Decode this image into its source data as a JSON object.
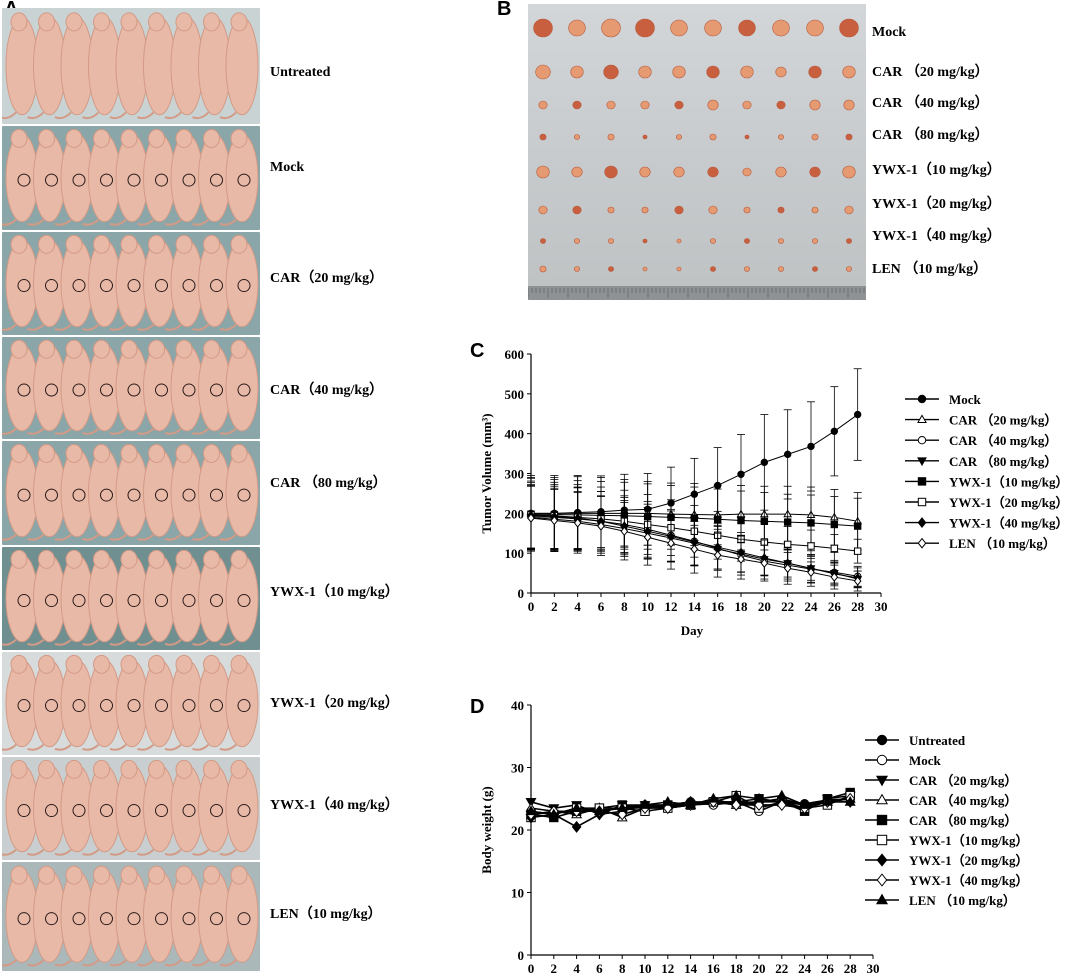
{
  "panels": {
    "a": "A",
    "b": "B",
    "c": "C",
    "d": "D"
  },
  "panel_a": {
    "groups": [
      "Untreated",
      "Mock",
      "CAR（20 mg/kg）",
      "CAR（40 mg/kg）",
      "CAR （80 mg/kg）",
      "YWX-1（10 mg/kg）",
      "YWX-1（20 mg/kg）",
      "YWX-1（40 mg/kg）",
      "LEN（10 mg/kg）"
    ],
    "mice_per_group": 9,
    "colors": {
      "skin": "#e8b9a6",
      "skin_shade": "#d39a86",
      "background": "#8aa6a8"
    }
  },
  "panel_b": {
    "rows": [
      "Mock",
      "CAR （20 mg/kg）",
      "CAR （40 mg/kg）",
      "CAR （80 mg/kg）",
      "YWX-1（10 mg/kg）",
      "YWX-1（20 mg/kg）",
      "YWX-1（40 mg/kg）",
      "LEN （10 mg/kg）"
    ],
    "tumors_per_row": 10,
    "colors": {
      "tumor": "#e59a72",
      "tumor_dark": "#c8603f",
      "tray": "#c9cccd"
    }
  },
  "chart_data": [
    {
      "type": "line",
      "panel": "C",
      "xlabel": "Day",
      "ylabel": "Tumor Volume (mm³)",
      "xlim": [
        0,
        30
      ],
      "ylim": [
        0,
        600
      ],
      "xticks": [
        0,
        2,
        4,
        6,
        8,
        10,
        12,
        14,
        16,
        18,
        20,
        22,
        24,
        26,
        28,
        30
      ],
      "yticks": [
        0,
        100,
        200,
        300,
        400,
        500,
        600
      ],
      "x": [
        0,
        2,
        4,
        6,
        8,
        10,
        12,
        14,
        16,
        18,
        20,
        22,
        24,
        26,
        28
      ],
      "legend_position": "right",
      "series": [
        {
          "name": "Mock",
          "marker": "circle-filled",
          "values": [
            200,
            200,
            202,
            204,
            208,
            210,
            226,
            248,
            270,
            298,
            328,
            348,
            368,
            406,
            448
          ],
          "errors": [
            90,
            90,
            90,
            90,
            90,
            90,
            90,
            90,
            95,
            100,
            120,
            112,
            112,
            112,
            115
          ]
        },
        {
          "name": "CAR （20 mg/kg）",
          "marker": "triangle-up-open",
          "values": [
            200,
            200,
            200,
            200,
            200,
            200,
            198,
            197,
            196,
            198,
            198,
            198,
            196,
            190,
            180
          ],
          "errors": [
            95,
            95,
            95,
            90,
            85,
            80,
            78,
            78,
            75,
            72,
            70,
            70,
            70,
            70,
            72
          ]
        },
        {
          "name": "CAR （40 mg/kg）",
          "marker": "circle-open",
          "values": [
            192,
            190,
            186,
            180,
            172,
            160,
            145,
            130,
            112,
            95,
            80,
            70,
            60,
            52,
            42
          ],
          "errors": [
            80,
            78,
            78,
            75,
            72,
            70,
            65,
            60,
            55,
            50,
            45,
            40,
            35,
            30,
            25
          ]
        },
        {
          "name": "CAR （80 mg/kg）",
          "marker": "triangle-down-filled",
          "values": [
            190,
            185,
            180,
            172,
            162,
            150,
            138,
            125,
            110,
            98,
            85,
            75,
            62,
            50,
            35
          ],
          "errors": [
            80,
            78,
            75,
            72,
            70,
            65,
            60,
            55,
            50,
            45,
            40,
            35,
            30,
            25,
            20
          ]
        },
        {
          "name": "YWX-1（10 mg/kg）",
          "marker": "square-filled",
          "values": [
            198,
            197,
            196,
            195,
            194,
            192,
            190,
            188,
            185,
            182,
            180,
            178,
            176,
            172,
            168
          ],
          "errors": [
            90,
            88,
            86,
            85,
            84,
            82,
            80,
            78,
            76,
            74,
            72,
            70,
            70,
            70,
            70
          ]
        },
        {
          "name": "YWX-1（20 mg/kg）",
          "marker": "square-open",
          "values": [
            196,
            194,
            190,
            186,
            180,
            172,
            164,
            155,
            145,
            135,
            128,
            122,
            118,
            112,
            105
          ],
          "errors": [
            85,
            84,
            82,
            80,
            78,
            75,
            70,
            65,
            60,
            55,
            50,
            45,
            40,
            35,
            30
          ]
        },
        {
          "name": "YWX-1（40 mg/kg）",
          "marker": "diamond-filled",
          "values": [
            195,
            192,
            188,
            180,
            168,
            155,
            142,
            128,
            115,
            102,
            88,
            75,
            62,
            48,
            38
          ],
          "errors": [
            82,
            80,
            78,
            75,
            72,
            68,
            64,
            60,
            55,
            50,
            45,
            40,
            35,
            30,
            25
          ]
        },
        {
          "name": "LEN （10 mg/kg）",
          "marker": "diamond-open",
          "values": [
            188,
            182,
            176,
            168,
            155,
            140,
            125,
            110,
            95,
            85,
            75,
            62,
            52,
            40,
            30
          ],
          "errors": [
            80,
            78,
            76,
            74,
            72,
            70,
            65,
            60,
            55,
            50,
            45,
            40,
            35,
            30,
            25
          ]
        }
      ]
    },
    {
      "type": "line",
      "panel": "D",
      "xlabel": "Day",
      "ylabel": "Body weight (g)",
      "xlim": [
        0,
        30
      ],
      "ylim": [
        0,
        40
      ],
      "xticks": [
        0,
        2,
        4,
        6,
        8,
        10,
        12,
        14,
        16,
        18,
        20,
        22,
        24,
        26,
        28,
        30
      ],
      "yticks": [
        0,
        10,
        20,
        30,
        40
      ],
      "x": [
        0,
        2,
        4,
        6,
        8,
        10,
        12,
        14,
        16,
        18,
        20,
        22,
        24,
        26,
        28
      ],
      "legend_position": "right",
      "series": [
        {
          "name": "Untreated",
          "marker": "circle-filled",
          "values": [
            22.5,
            22.8,
            23.0,
            23.2,
            23.4,
            23.6,
            23.8,
            24.0,
            24.2,
            24.4,
            24.5,
            24.6,
            24.2,
            24.8,
            25.0
          ]
        },
        {
          "name": "Mock",
          "marker": "circle-open",
          "values": [
            23.0,
            22.5,
            23.5,
            23.0,
            23.5,
            24.0,
            24.0,
            24.5,
            24.0,
            24.5,
            23.0,
            24.5,
            23.5,
            24.5,
            25.0
          ]
        },
        {
          "name": "CAR （20 mg/kg）",
          "marker": "triangle-down-filled",
          "values": [
            24.5,
            23.5,
            24.0,
            22.5,
            24.0,
            24.0,
            23.5,
            24.0,
            24.5,
            24.5,
            24.0,
            24.0,
            23.5,
            25.0,
            25.5
          ]
        },
        {
          "name": "CAR （40 mg/kg）",
          "marker": "triangle-up-open",
          "values": [
            23.5,
            23.0,
            22.5,
            23.5,
            22.0,
            23.5,
            24.0,
            24.0,
            25.0,
            24.0,
            24.5,
            25.0,
            24.0,
            24.5,
            25.0
          ]
        },
        {
          "name": "CAR （80 mg/kg）",
          "marker": "square-filled",
          "values": [
            22.5,
            22.0,
            23.0,
            23.5,
            24.0,
            23.5,
            24.0,
            24.0,
            24.5,
            24.5,
            25.0,
            24.5,
            23.0,
            25.0,
            26.0
          ]
        },
        {
          "name": "YWX-1（10 mg/kg）",
          "marker": "square-open",
          "values": [
            22.0,
            22.5,
            23.5,
            23.5,
            23.5,
            23.0,
            23.5,
            24.0,
            24.5,
            25.5,
            23.5,
            24.5,
            23.5,
            24.0,
            25.5
          ]
        },
        {
          "name": "YWX-1（20 mg/kg）",
          "marker": "diamond-filled",
          "values": [
            22.0,
            22.5,
            20.5,
            22.5,
            23.0,
            24.0,
            24.0,
            24.5,
            24.5,
            24.0,
            24.5,
            24.5,
            24.0,
            24.5,
            24.5
          ]
        },
        {
          "name": "YWX-1（40 mg/kg）",
          "marker": "diamond-open",
          "values": [
            22.5,
            23.0,
            23.0,
            23.0,
            22.5,
            23.5,
            23.5,
            24.0,
            24.5,
            24.0,
            24.0,
            24.0,
            23.5,
            24.5,
            25.0
          ]
        },
        {
          "name": "LEN （10 mg/kg）",
          "marker": "triangle-up-filled",
          "values": [
            23.0,
            22.5,
            23.5,
            23.0,
            23.5,
            24.0,
            24.5,
            24.0,
            25.0,
            25.5,
            25.0,
            25.5,
            24.0,
            24.5,
            24.5
          ]
        }
      ]
    }
  ]
}
